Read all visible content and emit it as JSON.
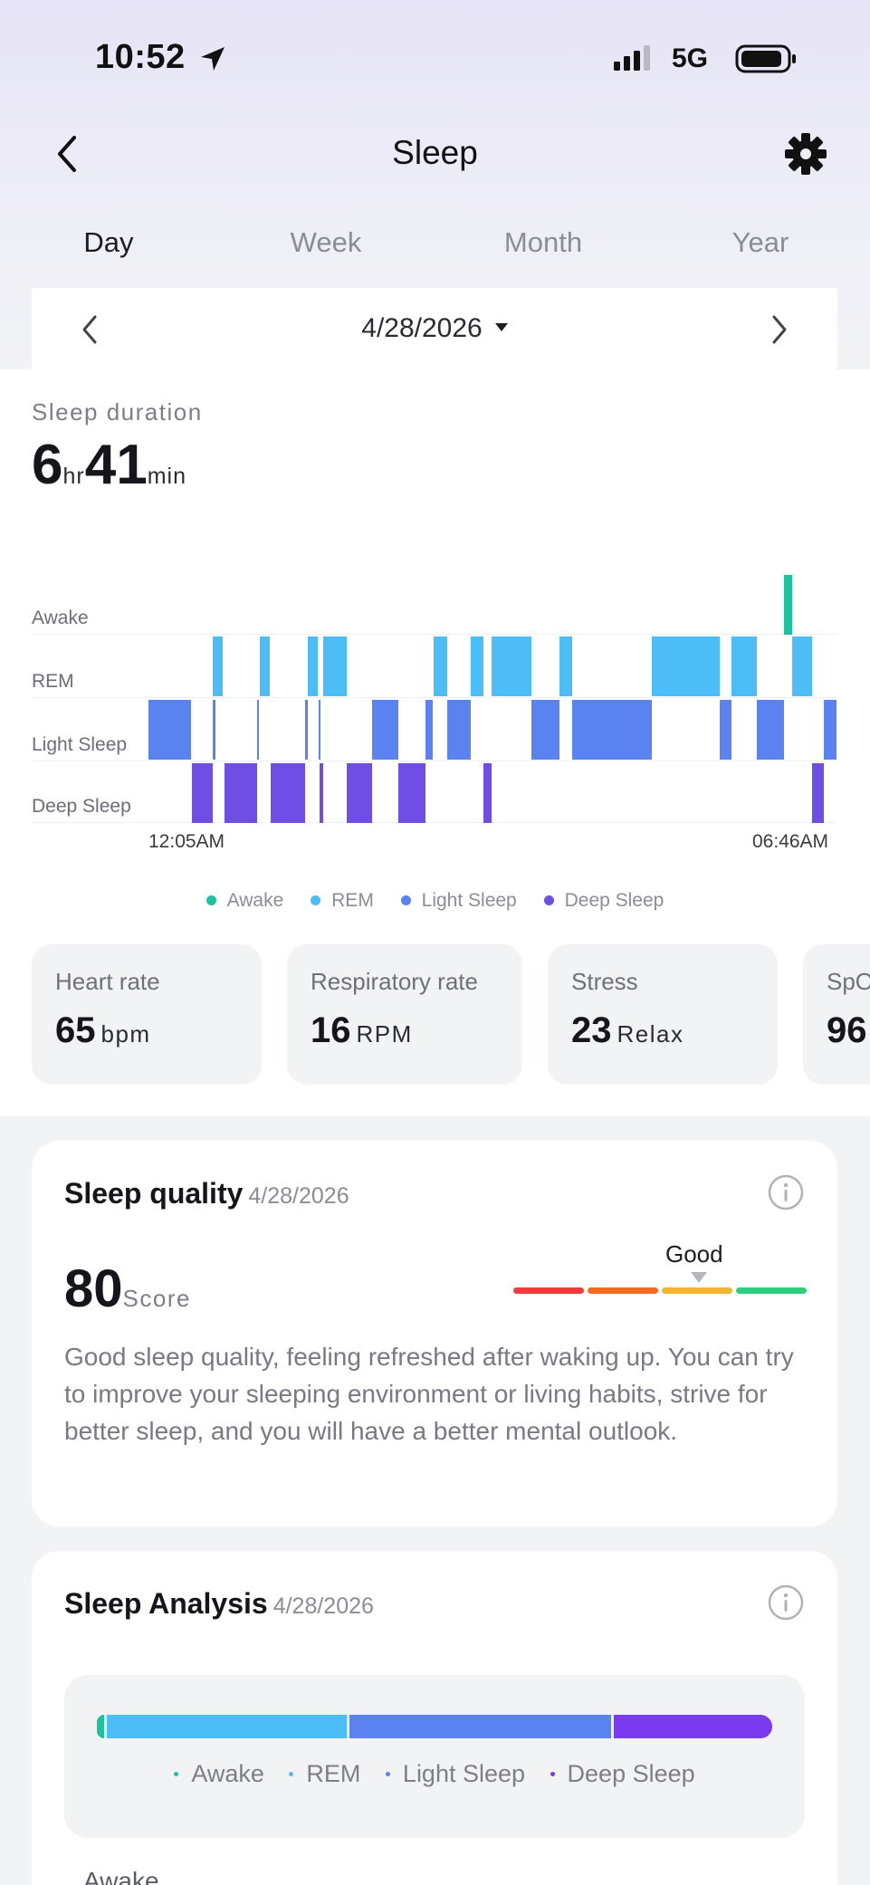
{
  "status_bar": {
    "time": "10:52",
    "network": "5G"
  },
  "nav": {
    "title": "Sleep"
  },
  "tabs": [
    {
      "label": "Day",
      "active": true
    },
    {
      "label": "Week",
      "active": false
    },
    {
      "label": "Month",
      "active": false
    },
    {
      "label": "Year",
      "active": false
    }
  ],
  "date_picker": {
    "date": "4/28/2026"
  },
  "duration": {
    "label": "Sleep duration",
    "hours": "6",
    "hours_unit": "hr",
    "minutes": "41",
    "minutes_unit": "min"
  },
  "chart_data": {
    "type": "timeline",
    "rows": [
      "Awake",
      "REM",
      "Light Sleep",
      "Deep Sleep"
    ],
    "colors": {
      "Awake": "#1dc3a0",
      "REM": "#4cbdf6",
      "Light Sleep": "#5b83f0",
      "Deep Sleep": "#6e4ee4"
    },
    "start_label": "12:05AM",
    "end_label": "06:46AM",
    "segments": [
      {
        "stage": "Light Sleep",
        "start": 0,
        "end": 0.062
      },
      {
        "stage": "Deep Sleep",
        "start": 0.063,
        "end": 0.093
      },
      {
        "stage": "REM",
        "start": 0.094,
        "end": 0.108
      },
      {
        "stage": "Light Sleep",
        "start": 0.094,
        "end": 0.097
      },
      {
        "stage": "Deep Sleep",
        "start": 0.11,
        "end": 0.158
      },
      {
        "stage": "Light Sleep",
        "start": 0.158,
        "end": 0.161
      },
      {
        "stage": "REM",
        "start": 0.162,
        "end": 0.176
      },
      {
        "stage": "Deep Sleep",
        "start": 0.178,
        "end": 0.228
      },
      {
        "stage": "Light Sleep",
        "start": 0.228,
        "end": 0.232
      },
      {
        "stage": "REM",
        "start": 0.232,
        "end": 0.246
      },
      {
        "stage": "Light Sleep",
        "start": 0.247,
        "end": 0.249
      },
      {
        "stage": "Deep Sleep",
        "start": 0.249,
        "end": 0.254
      },
      {
        "stage": "REM",
        "start": 0.254,
        "end": 0.288
      },
      {
        "stage": "Deep Sleep",
        "start": 0.288,
        "end": 0.325
      },
      {
        "stage": "Light Sleep",
        "start": 0.325,
        "end": 0.363
      },
      {
        "stage": "Deep Sleep",
        "start": 0.363,
        "end": 0.403
      },
      {
        "stage": "Light Sleep",
        "start": 0.403,
        "end": 0.413
      },
      {
        "stage": "REM",
        "start": 0.414,
        "end": 0.434
      },
      {
        "stage": "Light Sleep",
        "start": 0.434,
        "end": 0.469
      },
      {
        "stage": "REM",
        "start": 0.469,
        "end": 0.487
      },
      {
        "stage": "Deep Sleep",
        "start": 0.487,
        "end": 0.499
      },
      {
        "stage": "REM",
        "start": 0.499,
        "end": 0.557
      },
      {
        "stage": "Light Sleep",
        "start": 0.557,
        "end": 0.597
      },
      {
        "stage": "REM",
        "start": 0.597,
        "end": 0.616
      },
      {
        "stage": "Light Sleep",
        "start": 0.616,
        "end": 0.732
      },
      {
        "stage": "REM",
        "start": 0.732,
        "end": 0.83
      },
      {
        "stage": "Light Sleep",
        "start": 0.83,
        "end": 0.848
      },
      {
        "stage": "REM",
        "start": 0.848,
        "end": 0.884
      },
      {
        "stage": "Light Sleep",
        "start": 0.884,
        "end": 0.924
      },
      {
        "stage": "Awake",
        "start": 0.924,
        "end": 0.935
      },
      {
        "stage": "REM",
        "start": 0.935,
        "end": 0.965
      },
      {
        "stage": "Deep Sleep",
        "start": 0.965,
        "end": 0.981
      },
      {
        "stage": "Light Sleep",
        "start": 0.981,
        "end": 1.0
      }
    ]
  },
  "legend": [
    "Awake",
    "REM",
    "Light Sleep",
    "Deep Sleep"
  ],
  "metrics": [
    {
      "label": "Heart rate",
      "value": "65",
      "unit": "bpm"
    },
    {
      "label": "Respiratory rate",
      "value": "16",
      "unit": "RPM"
    },
    {
      "label": "Stress",
      "value": "23",
      "unit": "Relax"
    },
    {
      "label": "SpO",
      "value": "96",
      "unit": ""
    }
  ],
  "quality": {
    "title": "Sleep quality",
    "date": "4/28/2026",
    "score": "80",
    "score_unit": "Score",
    "rating": "Good",
    "scale_colors": [
      "#ee3b3b",
      "#f36b23",
      "#f2b531",
      "#2fce7d"
    ],
    "description": "Good sleep quality, feeling refreshed after waking up. You can try to improve your sleeping environment or living habits, strive for better sleep, and you will have a better mental outlook."
  },
  "analysis": {
    "title": "Sleep Analysis",
    "date": "4/28/2026",
    "bar_fractions": [
      {
        "stage": "Awake",
        "fraction": 0.011,
        "color": "#1dc3a0"
      },
      {
        "stage": "REM",
        "fraction": 0.272,
        "color": "#4cbdf6"
      },
      {
        "stage": "Light Sleep",
        "fraction": 0.296,
        "color": "#5b83f0"
      },
      {
        "stage": "Deep Sleep",
        "fraction": 0.177,
        "color": "#7a3bf0"
      }
    ],
    "legend": [
      "Awake",
      "REM",
      "Light Sleep",
      "Deep Sleep"
    ],
    "legend_colors": [
      "#1dc3a0",
      "#4cbdf6",
      "#5b83f0",
      "#7a3bf0"
    ],
    "next_label": "Awake"
  }
}
